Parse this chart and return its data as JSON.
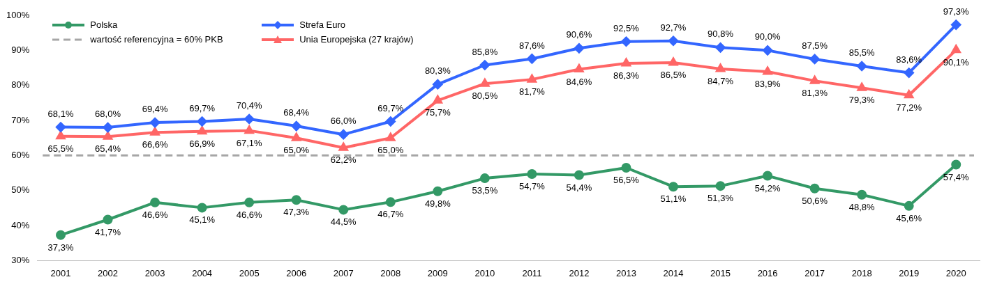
{
  "chart_data": {
    "type": "line",
    "categories": [
      "2001",
      "2002",
      "2003",
      "2004",
      "2005",
      "2006",
      "2007",
      "2008",
      "2009",
      "2010",
      "2011",
      "2012",
      "2013",
      "2014",
      "2015",
      "2016",
      "2017",
      "2018",
      "2019",
      "2020"
    ],
    "ylim": [
      30,
      100
    ],
    "yticks": [
      {
        "value": 30,
        "label": "30%"
      },
      {
        "value": 40,
        "label": "40%"
      },
      {
        "value": 50,
        "label": "50%"
      },
      {
        "value": 60,
        "label": "60%"
      },
      {
        "value": 70,
        "label": "70%"
      },
      {
        "value": 80,
        "label": "80%"
      },
      {
        "value": 90,
        "label": "90%"
      },
      {
        "value": 100,
        "label": "100%"
      }
    ],
    "grid": false,
    "legend": "top left",
    "line_style": "solid",
    "series": [
      {
        "name": "Polska",
        "color": "#339966",
        "marker": "circle",
        "values": [
          37.3,
          41.7,
          46.6,
          45.1,
          46.6,
          47.3,
          44.5,
          46.7,
          49.8,
          53.5,
          54.7,
          54.4,
          56.5,
          51.1,
          51.3,
          54.2,
          50.6,
          48.8,
          45.6,
          57.4
        ],
        "value_labels": [
          "37,3%",
          "41,7%",
          "46,6%",
          "45,1%",
          "46,6%",
          "47,3%",
          "44,5%",
          "46,7%",
          "49,8%",
          "53,5%",
          "54,7%",
          "54,4%",
          "56,5%",
          "51,1%",
          "51,3%",
          "54,2%",
          "50,6%",
          "48,8%",
          "45,6%",
          "57,4%"
        ]
      },
      {
        "name": "Strefa Euro",
        "color": "#3366ff",
        "marker": "diamond",
        "values": [
          68.1,
          68.0,
          69.4,
          69.7,
          70.4,
          68.4,
          66.0,
          69.7,
          80.3,
          85.8,
          87.6,
          90.6,
          92.5,
          92.7,
          90.8,
          90.0,
          87.5,
          85.5,
          83.6,
          97.3
        ],
        "value_labels": [
          "68,1%",
          "68,0%",
          "69,4%",
          "69,7%",
          "70,4%",
          "68,4%",
          "66,0%",
          "69,7%",
          "80,3%",
          "85,8%",
          "87,6%",
          "90,6%",
          "92,5%",
          "92,7%",
          "90,8%",
          "90,0%",
          "87,5%",
          "85,5%",
          "83,6%",
          "97,3%"
        ]
      },
      {
        "name": "Unia Europejska (27 krajów)",
        "color": "#ff6666",
        "marker": "triangle",
        "values": [
          65.5,
          65.4,
          66.6,
          66.9,
          67.1,
          65.0,
          62.2,
          65.0,
          75.7,
          80.5,
          81.7,
          84.6,
          86.3,
          86.5,
          84.7,
          83.9,
          81.3,
          79.3,
          77.2,
          90.1
        ],
        "value_labels": [
          "65,5%",
          "65,4%",
          "66,6%",
          "66,9%",
          "67,1%",
          "65,0%",
          "62,2%",
          "65,0%",
          "75,7%",
          "80,5%",
          "81,7%",
          "84,6%",
          "86,3%",
          "86,5%",
          "84,7%",
          "83,9%",
          "81,3%",
          "79,3%",
          "77,2%",
          "90,1%"
        ]
      }
    ],
    "ref_lines": [
      {
        "axis": "y",
        "value": 60,
        "label": "wartość referencyjna = 60% PKB",
        "color": "#a6a6a6",
        "line_style": "dashed"
      }
    ]
  }
}
